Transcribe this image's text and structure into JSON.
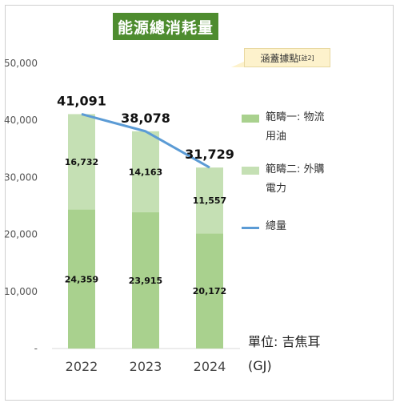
{
  "title": "能源總消耗量",
  "callout": {
    "text": "涵蓋據點",
    "note": "[註2]"
  },
  "unit": {
    "line1": "單位: 吉焦耳",
    "line2": "(GJ)"
  },
  "legend": [
    {
      "label_line1": "範疇一: 物流",
      "label_line2": "用油",
      "color": "#a9d18e"
    },
    {
      "label_line1": "範疇二: 外購",
      "label_line2": "電力",
      "color": "#c5e0b4"
    },
    {
      "label_line1": "總量",
      "label_line2": "",
      "color": "#5b9bd5"
    }
  ],
  "chart_data": {
    "type": "bar",
    "stacked": true,
    "categories": [
      "2022",
      "2023",
      "2024"
    ],
    "series": [
      {
        "name": "範疇一: 物流用油",
        "values": [
          24359,
          23915,
          20172
        ],
        "color": "#a9d18e",
        "labels": [
          "24,359",
          "23,915",
          "20,172"
        ]
      },
      {
        "name": "範疇二: 外購電力",
        "values": [
          16732,
          14163,
          11557
        ],
        "color": "#c5e0b4",
        "labels": [
          "16,732",
          "14,163",
          "11,557"
        ]
      },
      {
        "name": "總量",
        "type": "line",
        "values": [
          41091,
          38078,
          31729
        ],
        "color": "#5b9bd5",
        "labels": [
          "41,091",
          "38,078",
          "31,729"
        ]
      }
    ],
    "yticks": [
      "-",
      "10,000",
      "20,000",
      "30,000",
      "40,000",
      "50,000"
    ],
    "ylim": [
      0,
      50000
    ],
    "grid": false,
    "legend_position": "right"
  }
}
